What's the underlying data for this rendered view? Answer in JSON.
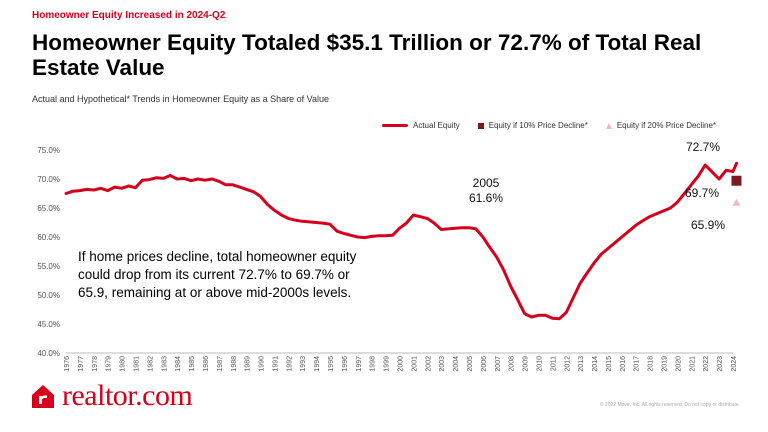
{
  "header": {
    "kicker": "Homeowner Equity Increased in 2024-Q2",
    "title": "Homeowner Equity Totaled $35.1 Trillion or 72.7% of Total Real Estate Value",
    "subtitle": "Actual and Hypothetical* Trends in Homeowner Equity as a Share of Value"
  },
  "legend": {
    "actual": "Actual Equity",
    "decline10": "Equity if 10% Price Decline*",
    "decline20": "Equity if 20% Price Decline*"
  },
  "callout": "If home prices decline, total homeowner equity could drop from its current 72.7% to 69.7% or 65.9, remaining at or above mid-2000s levels.",
  "brand": {
    "name": "realtor.com"
  },
  "copyright": "© 2022 Move, Inc. All rights reserved. Do not copy or distribute.",
  "colors": {
    "actual": "#d6001c",
    "decline10": "#7b1a22",
    "decline20": "#f2b8bc",
    "brand": "#d6001c"
  },
  "chart_data": {
    "type": "line",
    "title": "Homeowner Equity Totaled $35.1 Trillion or 72.7% of Total Real Estate Value",
    "xlabel": "",
    "ylabel": "",
    "ylim": [
      40,
      75
    ],
    "yticks": [
      "40.0%",
      "45.0%",
      "50.0%",
      "55.0%",
      "60.0%",
      "65.0%",
      "70.0%",
      "75.0%"
    ],
    "categories": [
      "1976",
      "1977",
      "1978",
      "1979",
      "1980",
      "1981",
      "1982",
      "1983",
      "1984",
      "1985",
      "1986",
      "1987",
      "1988",
      "1989",
      "1990",
      "1991",
      "1992",
      "1993",
      "1994",
      "1995",
      "1996",
      "1997",
      "1998",
      "1999",
      "2000",
      "2001",
      "2002",
      "2003",
      "2004",
      "2005",
      "2006",
      "2007",
      "2008",
      "2009",
      "2010",
      "2011",
      "2012",
      "2013",
      "2014",
      "2015",
      "2016",
      "2017",
      "2018",
      "2019",
      "2020",
      "2021",
      "2022",
      "2023",
      "2024"
    ],
    "series": [
      {
        "name": "Actual Equity",
        "points": [
          [
            1976.0,
            67.5
          ],
          [
            1976.5,
            67.9
          ],
          [
            1977.0,
            68.0
          ],
          [
            1977.5,
            68.2
          ],
          [
            1978.0,
            68.1
          ],
          [
            1978.5,
            68.4
          ],
          [
            1979.0,
            68.0
          ],
          [
            1979.5,
            68.6
          ],
          [
            1980.0,
            68.4
          ],
          [
            1980.5,
            68.8
          ],
          [
            1981.0,
            68.5
          ],
          [
            1981.5,
            69.8
          ],
          [
            1982.0,
            69.9
          ],
          [
            1982.5,
            70.2
          ],
          [
            1983.0,
            70.1
          ],
          [
            1983.5,
            70.6
          ],
          [
            1984.0,
            70.0
          ],
          [
            1984.5,
            70.1
          ],
          [
            1985.0,
            69.7
          ],
          [
            1985.5,
            70.0
          ],
          [
            1986.0,
            69.8
          ],
          [
            1986.5,
            70.0
          ],
          [
            1987.0,
            69.6
          ],
          [
            1987.5,
            69.0
          ],
          [
            1988.0,
            69.0
          ],
          [
            1988.5,
            68.6
          ],
          [
            1989.0,
            68.2
          ],
          [
            1989.5,
            67.8
          ],
          [
            1990.0,
            67.0
          ],
          [
            1990.5,
            65.6
          ],
          [
            1991.0,
            64.6
          ],
          [
            1991.5,
            63.8
          ],
          [
            1992.0,
            63.2
          ],
          [
            1992.5,
            62.9
          ],
          [
            1993.0,
            62.7
          ],
          [
            1993.5,
            62.6
          ],
          [
            1994.0,
            62.5
          ],
          [
            1994.5,
            62.4
          ],
          [
            1995.0,
            62.2
          ],
          [
            1995.5,
            61.0
          ],
          [
            1996.0,
            60.6
          ],
          [
            1996.5,
            60.3
          ],
          [
            1997.0,
            60.0
          ],
          [
            1997.5,
            59.9
          ],
          [
            1998.0,
            60.1
          ],
          [
            1998.5,
            60.2
          ],
          [
            1999.0,
            60.2
          ],
          [
            1999.5,
            60.3
          ],
          [
            2000.0,
            61.5
          ],
          [
            2000.5,
            62.4
          ],
          [
            2001.0,
            63.8
          ],
          [
            2001.5,
            63.5
          ],
          [
            2002.0,
            63.2
          ],
          [
            2002.5,
            62.4
          ],
          [
            2003.0,
            61.3
          ],
          [
            2003.5,
            61.4
          ],
          [
            2004.0,
            61.5
          ],
          [
            2004.5,
            61.6
          ],
          [
            2005.0,
            61.6
          ],
          [
            2005.5,
            61.4
          ],
          [
            2006.0,
            60.0
          ],
          [
            2006.5,
            58.2
          ],
          [
            2007.0,
            56.5
          ],
          [
            2007.5,
            54.3
          ],
          [
            2008.0,
            51.5
          ],
          [
            2008.5,
            49.2
          ],
          [
            2009.0,
            46.8
          ],
          [
            2009.5,
            46.2
          ],
          [
            2010.0,
            46.5
          ],
          [
            2010.5,
            46.5
          ],
          [
            2011.0,
            46.0
          ],
          [
            2011.5,
            45.9
          ],
          [
            2012.0,
            47.0
          ],
          [
            2012.5,
            49.5
          ],
          [
            2013.0,
            52.0
          ],
          [
            2013.5,
            53.8
          ],
          [
            2014.0,
            55.5
          ],
          [
            2014.5,
            57.0
          ],
          [
            2015.0,
            58.0
          ],
          [
            2015.5,
            59.0
          ],
          [
            2016.0,
            60.0
          ],
          [
            2016.5,
            61.0
          ],
          [
            2017.0,
            62.0
          ],
          [
            2017.5,
            62.8
          ],
          [
            2018.0,
            63.5
          ],
          [
            2018.5,
            64.0
          ],
          [
            2019.0,
            64.5
          ],
          [
            2019.5,
            65.0
          ],
          [
            2020.0,
            66.0
          ],
          [
            2020.5,
            67.5
          ],
          [
            2021.0,
            69.0
          ],
          [
            2021.5,
            70.5
          ],
          [
            2022.0,
            72.4
          ],
          [
            2022.5,
            71.2
          ],
          [
            2023.0,
            70.0
          ],
          [
            2023.5,
            71.5
          ],
          [
            2024.0,
            71.3
          ],
          [
            2024.25,
            72.7
          ]
        ]
      },
      {
        "name": "Equity if 10% Price Decline*",
        "points": [
          [
            2024.25,
            69.7
          ]
        ]
      },
      {
        "name": "Equity if 20% Price Decline*",
        "points": [
          [
            2024.25,
            65.9
          ]
        ]
      }
    ],
    "annotations": [
      {
        "x": 2005,
        "y": 61.6,
        "text_year": "2005",
        "text_value": "61.6%"
      },
      {
        "x": 2024.25,
        "y": 72.7,
        "text": "72.7%"
      },
      {
        "x": 2024.25,
        "y": 69.7,
        "text": "69.7%"
      },
      {
        "x": 2024.25,
        "y": 65.9,
        "text": "65.9%"
      }
    ],
    "grid": false,
    "legend_position": "top-right"
  }
}
